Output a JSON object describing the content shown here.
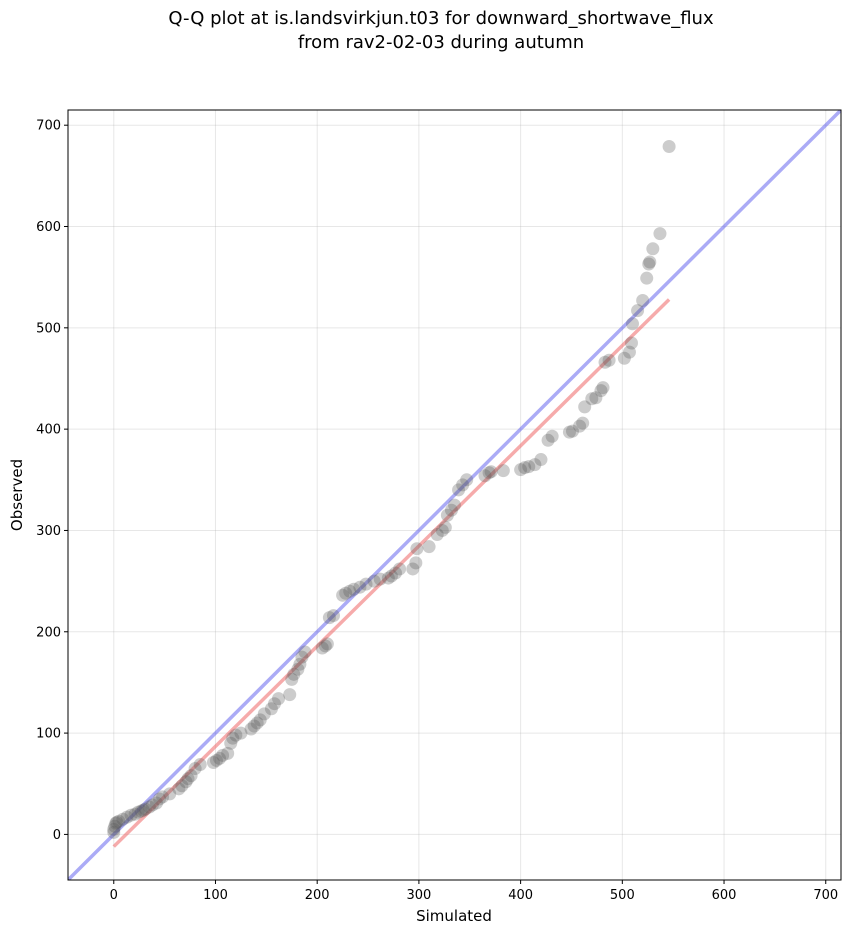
{
  "chart_data": {
    "type": "scatter",
    "title": [
      "Q-Q plot at is.landsvirkjun.t03 for downward_shortwave_flux",
      "from rav2-02-03 during autumn"
    ],
    "xlabel": "Simulated",
    "ylabel": "Observed",
    "xlim": [
      -45,
      715
    ],
    "ylim": [
      -45,
      715
    ],
    "xticks": [
      0,
      100,
      200,
      300,
      400,
      500,
      600,
      700
    ],
    "yticks": [
      0,
      100,
      200,
      300,
      400,
      500,
      600,
      700
    ],
    "grid": true,
    "colors": {
      "points": "#555555",
      "identity": "#6666ee",
      "fit": "#ee6666"
    },
    "identity_line": [
      [
        -45,
        -45
      ],
      [
        715,
        715
      ]
    ],
    "fit_line": [
      [
        0,
        -12
      ],
      [
        546,
        528
      ]
    ],
    "points": [
      [
        0,
        2
      ],
      [
        0,
        5
      ],
      [
        1,
        8
      ],
      [
        2,
        11
      ],
      [
        3,
        12
      ],
      [
        5,
        13
      ],
      [
        9,
        15
      ],
      [
        13,
        17
      ],
      [
        17,
        19
      ],
      [
        21,
        20
      ],
      [
        24,
        22
      ],
      [
        27,
        23
      ],
      [
        29,
        24
      ],
      [
        31,
        25
      ],
      [
        35,
        27
      ],
      [
        38,
        29
      ],
      [
        42,
        31
      ],
      [
        45,
        35
      ],
      [
        48,
        37
      ],
      [
        55,
        40
      ],
      [
        64,
        45
      ],
      [
        67,
        48
      ],
      [
        71,
        52
      ],
      [
        73,
        55
      ],
      [
        76,
        58
      ],
      [
        80,
        65
      ],
      [
        85,
        69
      ],
      [
        98,
        71
      ],
      [
        101,
        73
      ],
      [
        104,
        75
      ],
      [
        107,
        78
      ],
      [
        112,
        80
      ],
      [
        115,
        90
      ],
      [
        117,
        95
      ],
      [
        120,
        98
      ],
      [
        125,
        100
      ],
      [
        135,
        104
      ],
      [
        138,
        107
      ],
      [
        141,
        110
      ],
      [
        144,
        113
      ],
      [
        148,
        119
      ],
      [
        155,
        124
      ],
      [
        158,
        129
      ],
      [
        162,
        134
      ],
      [
        173,
        138
      ],
      [
        175,
        153
      ],
      [
        177,
        158
      ],
      [
        181,
        163
      ],
      [
        183,
        168
      ],
      [
        185,
        175
      ],
      [
        188,
        180
      ],
      [
        205,
        184
      ],
      [
        208,
        186
      ],
      [
        210,
        188
      ],
      [
        212,
        214
      ],
      [
        216,
        216
      ],
      [
        225,
        236
      ],
      [
        228,
        238
      ],
      [
        232,
        240
      ],
      [
        236,
        242
      ],
      [
        242,
        244
      ],
      [
        248,
        247
      ],
      [
        256,
        250
      ],
      [
        262,
        252
      ],
      [
        270,
        253
      ],
      [
        273,
        255
      ],
      [
        277,
        258
      ],
      [
        281,
        262
      ],
      [
        294,
        262
      ],
      [
        297,
        268
      ],
      [
        298,
        282
      ],
      [
        310,
        284
      ],
      [
        318,
        296
      ],
      [
        323,
        300
      ],
      [
        326,
        303
      ],
      [
        328,
        315
      ],
      [
        332,
        320
      ],
      [
        335,
        325
      ],
      [
        339,
        340
      ],
      [
        343,
        345
      ],
      [
        347,
        350
      ],
      [
        365,
        354
      ],
      [
        369,
        357
      ],
      [
        371,
        358
      ],
      [
        383,
        359
      ],
      [
        400,
        360
      ],
      [
        404,
        362
      ],
      [
        408,
        363
      ],
      [
        414,
        365
      ],
      [
        420,
        370
      ],
      [
        427,
        389
      ],
      [
        431,
        393
      ],
      [
        448,
        397
      ],
      [
        451,
        398
      ],
      [
        458,
        403
      ],
      [
        461,
        406
      ],
      [
        463,
        422
      ],
      [
        470,
        430
      ],
      [
        474,
        431
      ],
      [
        479,
        438
      ],
      [
        481,
        441
      ],
      [
        483,
        466
      ],
      [
        487,
        468
      ],
      [
        502,
        470
      ],
      [
        507,
        476
      ],
      [
        509,
        485
      ],
      [
        510,
        504
      ],
      [
        515,
        517
      ],
      [
        520,
        527
      ],
      [
        524,
        549
      ],
      [
        526,
        563
      ],
      [
        527,
        565
      ],
      [
        530,
        578
      ],
      [
        537,
        593
      ],
      [
        546,
        679
      ]
    ]
  }
}
